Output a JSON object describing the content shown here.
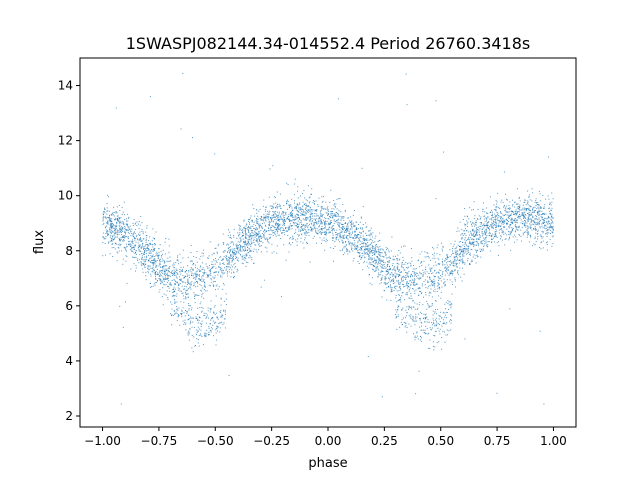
{
  "chart_data": {
    "type": "scatter",
    "title": "1SWASPJ082144.34-014552.4 Period 26760.3418s",
    "xlabel": "phase",
    "ylabel": "flux",
    "xlim": [
      -1.1,
      1.1
    ],
    "ylim": [
      1.6,
      15.0
    ],
    "xticks": [
      -1.0,
      -0.75,
      -0.5,
      -0.25,
      0.0,
      0.25,
      0.5,
      0.75,
      1.0
    ],
    "xtick_labels": [
      "−1.00",
      "−0.75",
      "−0.50",
      "−0.25",
      "0.00",
      "0.25",
      "0.50",
      "0.75",
      "1.00"
    ],
    "yticks": [
      2,
      4,
      6,
      8,
      10,
      12,
      14
    ],
    "ytick_labels": [
      "2",
      "4",
      "6",
      "8",
      "10",
      "12",
      "14"
    ],
    "grid": false,
    "point_color": "#1f77b4",
    "x": [
      -1.0,
      -0.95,
      -0.9,
      -0.85,
      -0.8,
      -0.75,
      -0.7,
      -0.65,
      -0.6,
      -0.55,
      -0.5,
      -0.45,
      -0.4,
      -0.35,
      -0.3,
      -0.25,
      -0.2,
      -0.15,
      -0.1,
      -0.05,
      0.0,
      0.05,
      0.1,
      0.15,
      0.2,
      0.25,
      0.3,
      0.35,
      0.4,
      0.45,
      0.5,
      0.55,
      0.6,
      0.65,
      0.7,
      0.75,
      0.8,
      0.85,
      0.9,
      0.95,
      1.0
    ],
    "y": [
      9.0,
      8.8,
      8.6,
      8.3,
      7.9,
      7.4,
      7.1,
      7.0,
      7.0,
      7.0,
      7.2,
      7.6,
      8.1,
      8.5,
      8.8,
      9.0,
      9.1,
      9.2,
      9.2,
      9.1,
      9.0,
      8.8,
      8.6,
      8.3,
      7.9,
      7.4,
      7.1,
      7.0,
      7.0,
      7.0,
      7.2,
      7.6,
      8.1,
      8.5,
      8.8,
      9.0,
      9.1,
      9.2,
      9.2,
      9.1,
      9.0
    ],
    "secondary_branch": {
      "x": [
        -0.7,
        -0.65,
        -0.6,
        -0.55,
        -0.5,
        -0.45,
        0.3,
        0.35,
        0.4,
        0.45,
        0.5,
        0.55
      ],
      "y": [
        6.0,
        5.6,
        5.4,
        5.3,
        5.4,
        5.8,
        6.0,
        5.6,
        5.4,
        5.3,
        5.4,
        5.8
      ]
    }
  }
}
